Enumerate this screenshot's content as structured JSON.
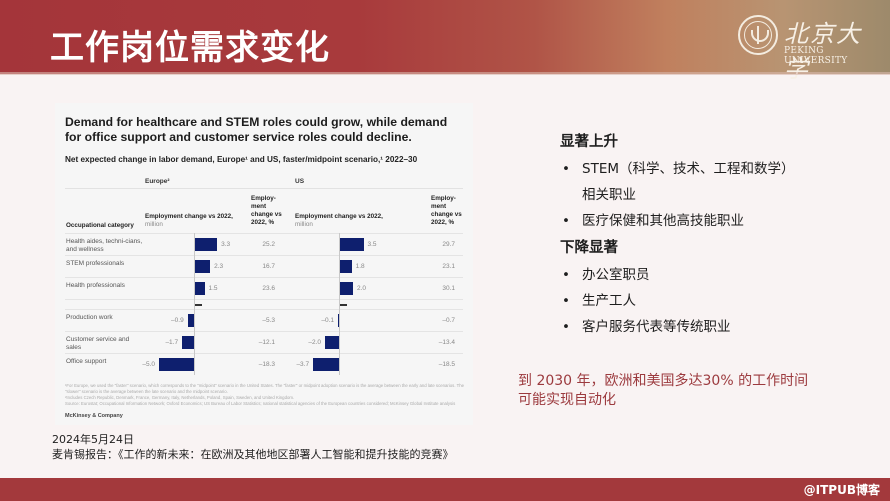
{
  "header": {
    "title": "工作岗位需求变化",
    "logo": {
      "name_cn": "北京大学",
      "name_en": "PEKING UNIVERSITY",
      "icon": "university-seal-icon"
    }
  },
  "chart_card": {
    "title": "Demand for healthcare and STEM roles could grow, while demand for office support and customer service roles could decline.",
    "subtitle": "Net expected change in labor demand, Europe¹ and US, faster/midpoint scenario,¹ 2022–30",
    "regions": [
      "Europe²",
      "US"
    ],
    "columns": {
      "category": "Occupational category",
      "change_million": "Employment change vs 2022,",
      "change_million_unit": "million",
      "change_pct": "Employ-ment change vs 2022, %"
    },
    "footnotes": [
      "¹For Europe, we used the \"faster\" scenario, which corresponds to the \"midpoint\" scenario in the United States. The \"faster\" or midpoint adoption scenario is the average between the early and late scenarios. The \"slower\" scenario is the average between the late scenario and the midpoint scenario.",
      "²Includes Czech Republic, Denmark, France, Germany, Italy, Netherlands, Poland, Spain, Sweden, and United Kingdom.",
      "Source: Eurostat; Occupational Information Network; Oxford Economics; US Bureau of Labor Statistics; national statistical agencies of the European countries considered; McKinsey Global Institute analysis"
    ],
    "brand": "McKinsey & Company"
  },
  "chart_data": {
    "type": "bar",
    "orientation": "horizontal",
    "title": "Demand for healthcare and STEM roles could grow, while demand for office support and customer service roles could decline.",
    "subtitle": "Net expected change in labor demand, Europe and US, faster/midpoint scenario, 2022–30",
    "categories": [
      "Health aides, technicians, and wellness",
      "STEM professionals",
      "Health professionals",
      "Production work",
      "Customer service and sales",
      "Office support"
    ],
    "category_labels": [
      "Health aides, techni-cians, and wellness",
      "STEM professionals",
      "Health professionals",
      "Production work",
      "Customer service and sales",
      "Office support"
    ],
    "series": [
      {
        "name": "Europe",
        "metric": "Employment change vs 2022, million",
        "values": [
          3.3,
          2.3,
          1.5,
          -0.9,
          -1.7,
          -5.0
        ],
        "labels": [
          "3.3",
          "2.3",
          "1.5",
          "–0.9",
          "–1.7",
          "–5.0"
        ]
      },
      {
        "name": "Europe",
        "metric": "Employment change vs 2022, %",
        "values": [
          25.2,
          16.7,
          23.6,
          -5.3,
          -12.1,
          -18.3
        ],
        "labels": [
          "25.2",
          "16.7",
          "23.6",
          "–5.3",
          "–12.1",
          "–18.3"
        ]
      },
      {
        "name": "US",
        "metric": "Employment change vs 2022, million",
        "values": [
          3.5,
          1.8,
          2.0,
          -0.1,
          -2.0,
          -3.7
        ],
        "labels": [
          "3.5",
          "1.8",
          "2.0",
          "–0.1",
          "–2.0",
          "–3.7"
        ]
      },
      {
        "name": "US",
        "metric": "Employment change vs 2022, %",
        "values": [
          29.7,
          23.1,
          30.1,
          -0.7,
          -13.4,
          -18.5
        ],
        "labels": [
          "29.7",
          "23.1",
          "30.1",
          "–0.7",
          "–13.4",
          "–18.5"
        ]
      }
    ],
    "xlabel": "Employment change vs 2022, million",
    "ylabel": "Occupational category",
    "grid": false,
    "bar_color": "#0e1f6e"
  },
  "panel": {
    "rise_heading": "显著上升",
    "rise_items": [
      {
        "line1": "STEM（科学、技术、工程和数学）",
        "line2": "相关职业"
      },
      {
        "line1": "医疗保健和其他高技能职业",
        "line2": ""
      }
    ],
    "fall_heading": "下降显著",
    "fall_items": [
      "办公室职员",
      "生产工人",
      "客户服务代表等传统职业"
    ],
    "bullet": "•"
  },
  "callout": {
    "line1": "到 2030 年，欧洲和美国多达30% 的工作时间",
    "line2": "可能实现自动化"
  },
  "source": {
    "date": "2024年5月24日",
    "citation": "麦肯锡报告：《工作的新未来：在欧洲及其他地区部署人工智能和提升技能的竞赛》"
  },
  "footer": {
    "watermark": "@ITPUB博客"
  },
  "colors": {
    "brand_red": "#a3393c",
    "bar_navy": "#0e1f6e",
    "callout_red": "#9c3a3e",
    "background": "#f9f3f3"
  }
}
